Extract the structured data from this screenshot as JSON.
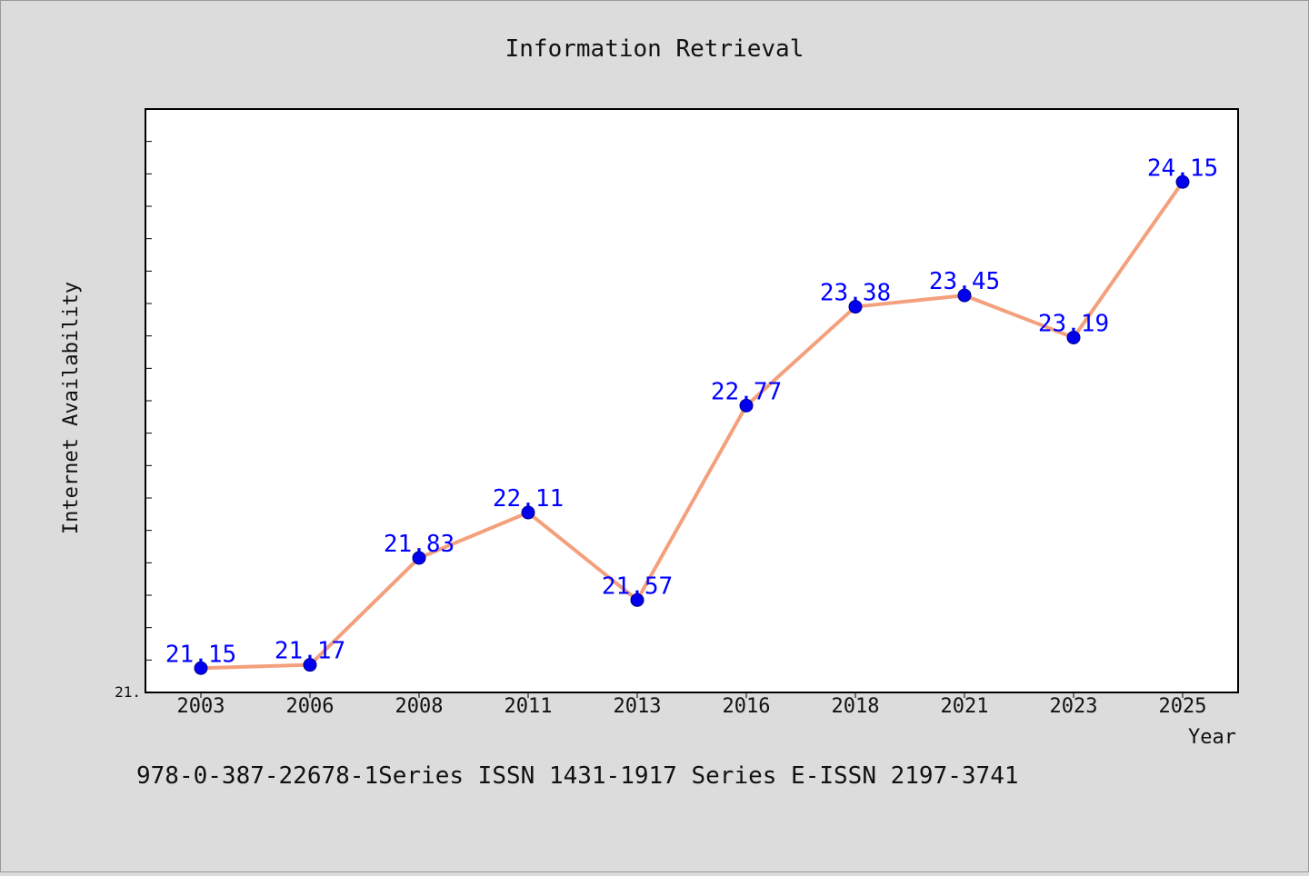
{
  "chart_data": {
    "type": "line",
    "title": "Information Retrieval",
    "xlabel": "Year",
    "ylabel": "Internet Availability",
    "categories": [
      "2003",
      "2006",
      "2008",
      "2011",
      "2013",
      "2016",
      "2018",
      "2021",
      "2023",
      "2025"
    ],
    "series": [
      {
        "values": [
          21.15,
          21.17,
          21.83,
          22.11,
          21.57,
          22.77,
          23.38,
          23.45,
          23.19,
          24.15
        ],
        "labels": [
          "21.15",
          "21.17",
          "21.83",
          "22.11",
          "21.57",
          "22.77",
          "23.38",
          "23.45",
          "23.19",
          "24.15"
        ]
      }
    ],
    "ylim": [
      21.0,
      24.6
    ],
    "ytick_label": "21.",
    "grid": false,
    "legend": "none",
    "colors": {
      "line": "#f4a07c",
      "marker": "#0000ee",
      "data_label": "#0000ff",
      "plot_background": "#ffffff",
      "page_background": "#dcdcdc"
    }
  },
  "footer": {
    "text": "978-0-387-22678-1Series ISSN 1431-1917 Series E-ISSN 2197-3741"
  }
}
